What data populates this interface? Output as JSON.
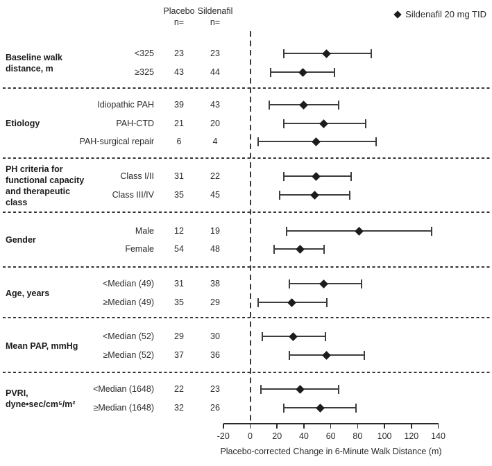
{
  "header": {
    "columns": [
      {
        "label": "Placebo",
        "sub": "n="
      },
      {
        "label": "Sildenafil",
        "sub": "n="
      }
    ]
  },
  "chart_data": {
    "type": "forest",
    "legend_label": "Sildenafil 20 mg TID",
    "xlabel": "Placebo-corrected Change in 6-Minute Walk Distance (m)",
    "xlim": [
      -20,
      140
    ],
    "x_ticks": [
      -20,
      0,
      20,
      40,
      60,
      80,
      100,
      120,
      140
    ],
    "reference_line_x": 0,
    "units": "m",
    "groups": [
      {
        "label": "Baseline walk\ndistance, m",
        "rows": [
          {
            "label": "<325",
            "placebo_n": 23,
            "sildenafil_n": 23,
            "estimate": 57,
            "ci_low": 25,
            "ci_high": 90
          },
          {
            "label": "≥325",
            "placebo_n": 43,
            "sildenafil_n": 44,
            "estimate": 39,
            "ci_low": 15,
            "ci_high": 63
          }
        ]
      },
      {
        "label": "Etiology",
        "rows": [
          {
            "label": "Idiopathic PAH",
            "placebo_n": 39,
            "sildenafil_n": 43,
            "estimate": 40,
            "ci_low": 14,
            "ci_high": 66
          },
          {
            "label": "PAH-CTD",
            "placebo_n": 21,
            "sildenafil_n": 20,
            "estimate": 55,
            "ci_low": 25,
            "ci_high": 86
          },
          {
            "label": "PAH-surgical repair",
            "placebo_n": 6,
            "sildenafil_n": 4,
            "estimate": 49,
            "ci_low": 6,
            "ci_high": 94
          }
        ]
      },
      {
        "label": "PH criteria for\nfunctional capacity\nand therapeutic\nclass",
        "rows": [
          {
            "label": "Class I/II",
            "placebo_n": 31,
            "sildenafil_n": 22,
            "estimate": 49,
            "ci_low": 25,
            "ci_high": 75
          },
          {
            "label": "Class III/IV",
            "placebo_n": 35,
            "sildenafil_n": 45,
            "estimate": 48,
            "ci_low": 22,
            "ci_high": 74
          }
        ]
      },
      {
        "label": "Gender",
        "rows": [
          {
            "label": "Male",
            "placebo_n": 12,
            "sildenafil_n": 19,
            "estimate": 81,
            "ci_low": 27,
            "ci_high": 135
          },
          {
            "label": "Female",
            "placebo_n": 54,
            "sildenafil_n": 48,
            "estimate": 37,
            "ci_low": 18,
            "ci_high": 55
          }
        ]
      },
      {
        "label": "Age, years",
        "rows": [
          {
            "label": "<Median (49)",
            "placebo_n": 31,
            "sildenafil_n": 38,
            "estimate": 55,
            "ci_low": 29,
            "ci_high": 83
          },
          {
            "label": "≥Median (49)",
            "placebo_n": 35,
            "sildenafil_n": 29,
            "estimate": 31,
            "ci_low": 6,
            "ci_high": 57
          }
        ]
      },
      {
        "label": "Mean PAP, mmHg",
        "rows": [
          {
            "label": "<Median (52)",
            "placebo_n": 29,
            "sildenafil_n": 30,
            "estimate": 32,
            "ci_low": 9,
            "ci_high": 56
          },
          {
            "label": "≥Median (52)",
            "placebo_n": 37,
            "sildenafil_n": 36,
            "estimate": 57,
            "ci_low": 29,
            "ci_high": 85
          }
        ]
      },
      {
        "label": "PVRI,\ndyne•sec/cm⁵/m²",
        "rows": [
          {
            "label": "<Median (1648)",
            "placebo_n": 22,
            "sildenafil_n": 23,
            "estimate": 37,
            "ci_low": 8,
            "ci_high": 66
          },
          {
            "label": "≥Median (1648)",
            "placebo_n": 32,
            "sildenafil_n": 26,
            "estimate": 52,
            "ci_low": 25,
            "ci_high": 79
          }
        ]
      }
    ]
  }
}
